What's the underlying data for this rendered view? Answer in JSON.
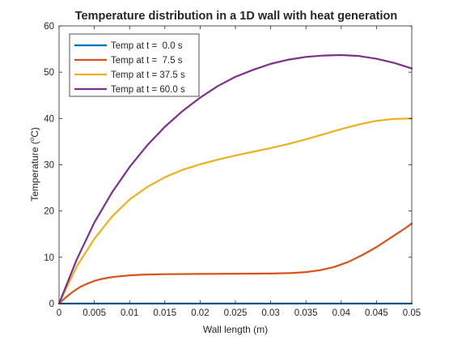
{
  "chart_data": {
    "type": "line",
    "title": "Temperature distribution in a 1D wall with heat generation",
    "xlabel": "Wall length (m)",
    "ylabel_main": "Temperature (",
    "ylabel_sup": "o",
    "ylabel_unit": "C)",
    "xlim": [
      0,
      0.05
    ],
    "ylim": [
      0,
      60
    ],
    "xticks": [
      0,
      0.005,
      0.01,
      0.015,
      0.02,
      0.025,
      0.03,
      0.035,
      0.04,
      0.045,
      0.05
    ],
    "xtick_labels": [
      "0",
      "0.005",
      "0.01",
      "0.015",
      "0.02",
      "0.025",
      "0.03",
      "0.035",
      "0.04",
      "0.045",
      "0.05"
    ],
    "yticks": [
      0,
      10,
      20,
      30,
      40,
      50,
      60
    ],
    "ytick_labels": [
      "0",
      "10",
      "20",
      "30",
      "40",
      "50",
      "60"
    ],
    "grid": false,
    "legend_position": "top-left",
    "series": [
      {
        "name": "Temp at t =  0.0 s",
        "color": "#0072BD",
        "x": [
          0,
          0.005,
          0.01,
          0.015,
          0.02,
          0.025,
          0.03,
          0.035,
          0.04,
          0.045,
          0.05
        ],
        "y": [
          0,
          0,
          0,
          0,
          0,
          0,
          0,
          0,
          0,
          0,
          0
        ]
      },
      {
        "name": "Temp at t =  7.5 s",
        "color": "#D95319",
        "x": [
          0,
          0.001,
          0.002,
          0.003,
          0.004,
          0.005,
          0.006,
          0.007,
          0.008,
          0.01,
          0.012,
          0.015,
          0.02,
          0.025,
          0.03,
          0.033,
          0.035,
          0.037,
          0.039,
          0.041,
          0.043,
          0.045,
          0.047,
          0.049,
          0.05
        ],
        "y": [
          0,
          1.4,
          2.6,
          3.6,
          4.3,
          4.9,
          5.3,
          5.6,
          5.8,
          6.1,
          6.25,
          6.35,
          6.4,
          6.45,
          6.5,
          6.6,
          6.8,
          7.2,
          7.9,
          9.0,
          10.5,
          12.2,
          14.2,
          16.2,
          17.3
        ]
      },
      {
        "name": "Temp at t = 37.5 s",
        "color": "#EDB120",
        "x": [
          0,
          0.0025,
          0.005,
          0.0075,
          0.01,
          0.0125,
          0.015,
          0.0175,
          0.02,
          0.0225,
          0.025,
          0.0275,
          0.03,
          0.0325,
          0.035,
          0.0375,
          0.04,
          0.0425,
          0.045,
          0.0475,
          0.05
        ],
        "y": [
          0,
          8.0,
          14.0,
          18.8,
          22.5,
          25.2,
          27.3,
          28.9,
          30.1,
          31.1,
          32.0,
          32.8,
          33.6,
          34.5,
          35.5,
          36.6,
          37.7,
          38.7,
          39.5,
          39.9,
          40.0
        ]
      },
      {
        "name": "Temp at t = 60.0 s",
        "color": "#7E2F8E",
        "x": [
          0,
          0.0025,
          0.005,
          0.0075,
          0.01,
          0.0125,
          0.015,
          0.0175,
          0.02,
          0.0225,
          0.025,
          0.0275,
          0.03,
          0.0325,
          0.035,
          0.0375,
          0.04,
          0.0425,
          0.045,
          0.0475,
          0.05
        ],
        "y": [
          0,
          9.5,
          17.5,
          24.0,
          29.5,
          34.2,
          38.2,
          41.6,
          44.5,
          47.0,
          49.0,
          50.5,
          51.8,
          52.7,
          53.3,
          53.6,
          53.7,
          53.5,
          52.9,
          52.0,
          50.8
        ]
      }
    ]
  }
}
